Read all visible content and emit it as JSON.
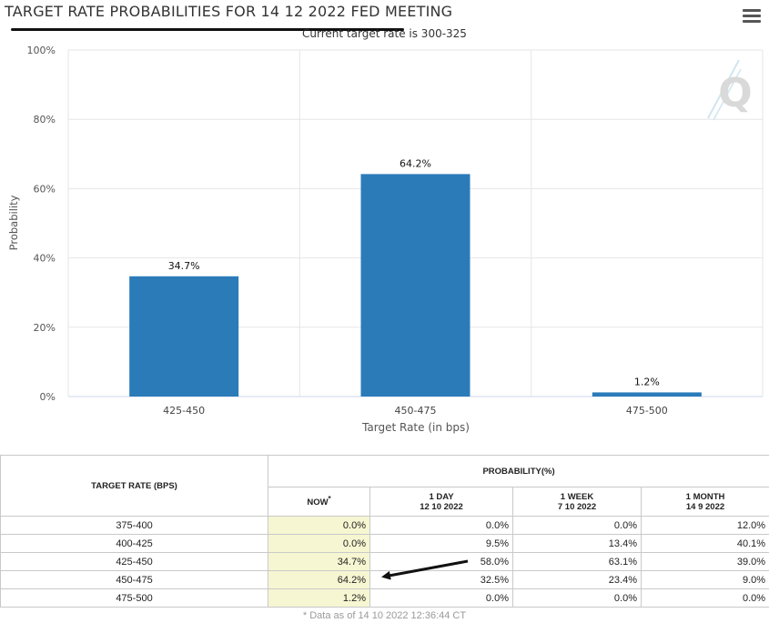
{
  "title": "TARGET RATE PROBABILITIES FOR 14 12 2022 FED MEETING",
  "subtitle": "Current target rate is 300-325",
  "menu_icon": "hamburger-menu-icon",
  "watermark": "Q",
  "colors": {
    "bar": "#2b7bb9",
    "now_bg": "#f6f6d2",
    "grid": "#e6e6e6"
  },
  "chart_data": {
    "type": "bar",
    "title": "TARGET RATE PROBABILITIES FOR 14 12 2022 FED MEETING",
    "subtitle": "Current target rate is 300-325",
    "xlabel": "Target Rate (in bps)",
    "ylabel": "Probability",
    "categories": [
      "425-450",
      "450-475",
      "475-500"
    ],
    "values": [
      34.7,
      64.2,
      1.2
    ],
    "value_labels": [
      "34.7%",
      "64.2%",
      "1.2%"
    ],
    "ylim": [
      0,
      100
    ],
    "yticks": [
      "0%",
      "20%",
      "40%",
      "60%",
      "80%",
      "100%"
    ],
    "ytick_values": [
      0,
      20,
      40,
      60,
      80,
      100
    ],
    "grid": true
  },
  "table": {
    "header_rate": "TARGET RATE (BPS)",
    "header_prob": "PROBABILITY(%)",
    "columns": [
      {
        "label": "NOW",
        "sup": "*",
        "sub": ""
      },
      {
        "label": "1 DAY",
        "sub": "12 10 2022"
      },
      {
        "label": "1 WEEK",
        "sub": "7 10 2022"
      },
      {
        "label": "1 MONTH",
        "sub": "14 9 2022"
      }
    ],
    "rows": [
      {
        "rate": "375-400",
        "now": "0.0%",
        "day": "0.0%",
        "week": "0.0%",
        "month": "12.0%"
      },
      {
        "rate": "400-425",
        "now": "0.0%",
        "day": "9.5%",
        "week": "13.4%",
        "month": "40.1%"
      },
      {
        "rate": "425-450",
        "now": "34.7%",
        "day": "58.0%",
        "week": "63.1%",
        "month": "39.0%"
      },
      {
        "rate": "450-475",
        "now": "64.2%",
        "day": "32.5%",
        "week": "23.4%",
        "month": "9.0%"
      },
      {
        "rate": "475-500",
        "now": "1.2%",
        "day": "0.0%",
        "week": "0.0%",
        "month": "0.0%"
      }
    ],
    "footnote": "* Data as of 14 10 2022 12:36:44 CT"
  }
}
